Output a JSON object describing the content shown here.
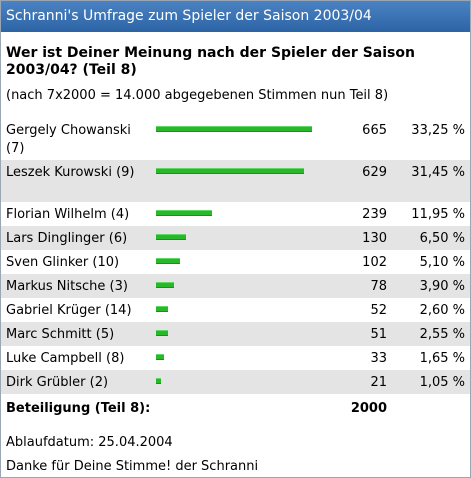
{
  "poll": {
    "title": "Schranni's Umfrage zum Spieler der Saison 2003/04",
    "question": "Wer ist Deiner Meinung nach der Spieler der Saison 2003/04? (Teil 8)",
    "note": "(nach 7x2000 = 14.000 abgegebenen Stimmen nun Teil 8)",
    "bar_color": "#29b82b",
    "options": [
      {
        "name": "Gergely Chowanski (7)",
        "votes": "665",
        "percent": "33,25 %",
        "fraction": 0.3325
      },
      {
        "name": "Leszek Kurowski (9)",
        "votes": "629",
        "percent": "31,45 %",
        "fraction": 0.3145
      },
      {
        "name": "Florian Wilhelm (4)",
        "votes": "239",
        "percent": "11,95 %",
        "fraction": 0.1195
      },
      {
        "name": "Lars Dinglinger (6)",
        "votes": "130",
        "percent": "6,50 %",
        "fraction": 0.065
      },
      {
        "name": "Sven Glinker (10)",
        "votes": "102",
        "percent": "5,10 %",
        "fraction": 0.051
      },
      {
        "name": "Markus Nitsche (3)",
        "votes": "78",
        "percent": "3,90 %",
        "fraction": 0.039
      },
      {
        "name": "Gabriel Krüger (14)",
        "votes": "52",
        "percent": "2,60 %",
        "fraction": 0.026
      },
      {
        "name": "Marc Schmitt (5)",
        "votes": "51",
        "percent": "2,55 %",
        "fraction": 0.0255
      },
      {
        "name": "Luke Campbell (8)",
        "votes": "33",
        "percent": "1,65 %",
        "fraction": 0.0165
      },
      {
        "name": "Dirk Grübler (2)",
        "votes": "21",
        "percent": "1,05 %",
        "fraction": 0.0105
      }
    ],
    "total_label": "Beteiligung (Teil 8):",
    "total_value": "2000",
    "expiry": "Ablaufdatum: 25.04.2004",
    "thanks": "Danke für Deine Stimme! der Schranni"
  }
}
